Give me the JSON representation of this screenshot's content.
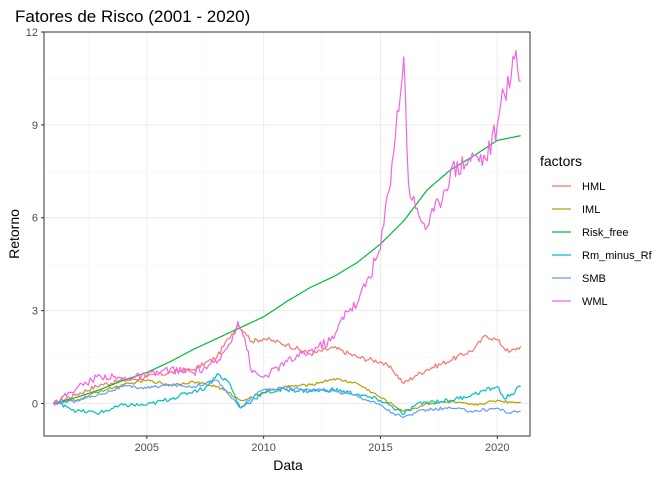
{
  "chart_data": {
    "type": "line",
    "title": "Fatores de Risco (2001 - 2020)",
    "xlabel": "Data",
    "ylabel": "Retorno",
    "x_ticks": [
      "2005",
      "2010",
      "2015",
      "2020"
    ],
    "y_ticks": [
      "0",
      "3",
      "6",
      "9",
      "12"
    ],
    "xlim": [
      2000.6,
      2021.4
    ],
    "ylim": [
      -1.05,
      12.0
    ],
    "grid": true,
    "legend": {
      "title": "factors",
      "placement": "right"
    },
    "series": [
      {
        "name": "HML",
        "color": "#F8766D",
        "x": [
          2001.0,
          2002.0,
          2003.0,
          2004.0,
          2005.0,
          2006.0,
          2007.0,
          2008.0,
          2008.5,
          2008.9,
          2009.2,
          2009.5,
          2010.0,
          2011.0,
          2012.0,
          2013.0,
          2014.0,
          2015.0,
          2015.5,
          2016.0,
          2016.5,
          2017.0,
          2018.0,
          2019.0,
          2019.5,
          2020.0,
          2020.5,
          2021.0
        ],
        "y": [
          0.0,
          0.3,
          0.6,
          0.75,
          0.85,
          1.0,
          1.1,
          1.5,
          2.1,
          2.55,
          2.3,
          2.0,
          2.1,
          1.9,
          1.6,
          1.8,
          1.5,
          1.35,
          1.1,
          0.65,
          0.9,
          1.1,
          1.4,
          1.75,
          2.2,
          2.05,
          1.65,
          1.85
        ]
      },
      {
        "name": "IML",
        "color": "#B79F00",
        "x": [
          2001.0,
          2002.0,
          2003.0,
          2004.0,
          2005.0,
          2006.0,
          2007.0,
          2008.0,
          2008.5,
          2009.0,
          2009.5,
          2010.0,
          2011.0,
          2012.0,
          2013.0,
          2014.0,
          2015.0,
          2016.0,
          2016.5,
          2017.0,
          2018.0,
          2019.0,
          2020.0,
          2020.5,
          2021.0
        ],
        "y": [
          0.0,
          0.1,
          0.4,
          0.6,
          0.75,
          0.6,
          0.7,
          0.55,
          0.35,
          0.1,
          0.2,
          0.35,
          0.55,
          0.6,
          0.8,
          0.65,
          0.2,
          -0.25,
          -0.15,
          0.0,
          0.05,
          -0.05,
          0.1,
          0.05,
          0.05
        ]
      },
      {
        "name": "Risk_free",
        "color": "#00BA38",
        "x": [
          2001.0,
          2002.0,
          2003.0,
          2004.0,
          2005.0,
          2006.0,
          2007.0,
          2008.0,
          2009.0,
          2010.0,
          2011.0,
          2012.0,
          2013.0,
          2014.0,
          2015.0,
          2016.0,
          2017.0,
          2018.0,
          2019.0,
          2020.0,
          2021.0
        ],
        "y": [
          0.0,
          0.2,
          0.45,
          0.75,
          1.0,
          1.35,
          1.75,
          2.1,
          2.45,
          2.8,
          3.3,
          3.75,
          4.1,
          4.55,
          5.15,
          5.9,
          6.9,
          7.55,
          8.0,
          8.5,
          8.65
        ]
      },
      {
        "name": "Rm_minus_Rf",
        "color": "#00BFC4",
        "x": [
          2001.0,
          2001.5,
          2002.0,
          2003.0,
          2004.0,
          2005.0,
          2006.0,
          2007.0,
          2007.5,
          2008.0,
          2008.5,
          2009.0,
          2009.5,
          2010.0,
          2011.0,
          2012.0,
          2013.0,
          2014.0,
          2015.0,
          2015.5,
          2016.0,
          2016.5,
          2017.0,
          2018.0,
          2019.0,
          2020.0,
          2020.3,
          2020.6,
          2021.0
        ],
        "y": [
          0.0,
          -0.05,
          -0.25,
          -0.3,
          -0.05,
          -0.05,
          0.15,
          0.4,
          0.5,
          0.95,
          0.7,
          -0.15,
          0.1,
          0.35,
          0.45,
          0.4,
          0.45,
          0.3,
          0.1,
          -0.1,
          -0.35,
          -0.05,
          0.05,
          0.1,
          0.3,
          0.55,
          0.15,
          0.3,
          0.55
        ]
      },
      {
        "name": "SMB",
        "color": "#619CFF",
        "x": [
          2001.0,
          2002.0,
          2003.0,
          2004.0,
          2005.0,
          2006.0,
          2007.0,
          2008.0,
          2009.0,
          2009.5,
          2010.0,
          2011.0,
          2012.0,
          2013.0,
          2014.0,
          2015.0,
          2015.5,
          2016.0,
          2016.5,
          2017.0,
          2018.0,
          2019.0,
          2020.0,
          2020.5,
          2021.0
        ],
        "y": [
          0.0,
          0.1,
          0.3,
          0.55,
          0.5,
          0.6,
          0.55,
          0.75,
          -0.15,
          0.2,
          0.45,
          0.5,
          0.45,
          0.4,
          0.25,
          -0.05,
          -0.3,
          -0.45,
          -0.3,
          -0.2,
          -0.15,
          -0.25,
          -0.15,
          -0.3,
          -0.25
        ]
      },
      {
        "name": "WML",
        "color": "#F564E3",
        "x": [
          2001.0,
          2002.0,
          2003.0,
          2004.0,
          2005.0,
          2006.0,
          2007.0,
          2008.0,
          2008.5,
          2008.9,
          2009.2,
          2009.5,
          2010.0,
          2011.0,
          2012.0,
          2013.0,
          2013.5,
          2014.0,
          2015.0,
          2015.5,
          2016.0,
          2016.2,
          2016.5,
          2017.0,
          2017.5,
          2018.0,
          2019.0,
          2019.5,
          2020.0,
          2020.3,
          2020.6,
          2020.8,
          2021.0
        ],
        "y": [
          0.0,
          0.5,
          0.9,
          0.8,
          0.9,
          1.1,
          1.0,
          1.3,
          1.9,
          2.65,
          2.1,
          1.0,
          0.85,
          1.35,
          1.7,
          2.1,
          3.0,
          3.2,
          5.0,
          7.8,
          11.2,
          7.1,
          6.3,
          5.7,
          6.5,
          7.5,
          8.0,
          7.9,
          9.0,
          10.0,
          10.6,
          11.4,
          10.4
        ]
      }
    ]
  }
}
